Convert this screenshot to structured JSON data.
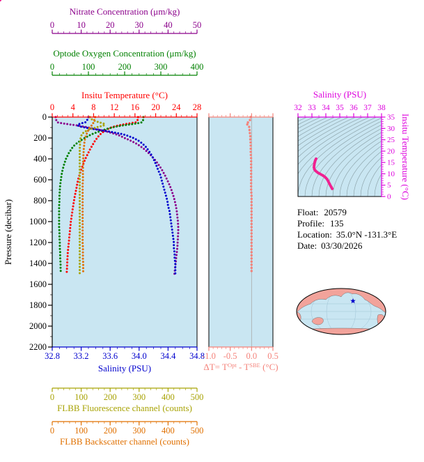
{
  "colors": {
    "background": "#ffffff",
    "plot_bg": "#c9e6f2",
    "axis_black": "#000000",
    "temperature": "#ff0000",
    "oxygen": "#008000",
    "nitrate": "#8b008b",
    "salinity": "#0000cd",
    "fluorescence": "#a8a305",
    "backscatter": "#e07000",
    "delta_t": "#f4827a",
    "ts_axis": "#dd00dd",
    "ts_points": "#f02090",
    "contour": "#8fa6ad",
    "map_land": "#f2a39b",
    "map_ocean": "#c9e6f2",
    "map_graticule": "#9fc3d4",
    "map_marker": "#0000cd"
  },
  "axis_titles": {
    "nitrate": "Nitrate Concentration (μm/kg)",
    "oxygen": "Optode Oxygen Concentration (μm/kg)",
    "temperature": "Insitu Temperature (°C)",
    "pressure": "Pressure (decibar)",
    "salinity": "Salinity (PSU)",
    "fluorescence": "FLBB Fluorescence channel (counts)",
    "backscatter": "FLBB Backscatter channel (counts)",
    "ts_salinity": "Salinity (PSU)",
    "ts_temperature": "Insitu Temperature (°C)",
    "delta_t": {
      "p1": "ΔT= T",
      "sup1": "Opt",
      "p2": " - T",
      "sup2": "SBE",
      "p3": " (°C)"
    }
  },
  "info": {
    "float_label": "Float:",
    "float_value": "20579",
    "profile_label": "Profile:",
    "profile_value": "135",
    "location_label": "Location:",
    "location_value": "35.0°N  -131.3°E",
    "date_label": "Date:",
    "date_value": "03/30/2026"
  },
  "chart_data": [
    {
      "type": "line",
      "name": "hydrographic-profile-plot",
      "ylabel": "Pressure (decibar)",
      "ylim": [
        0,
        2200
      ],
      "yticks": [
        "0",
        "200",
        "400",
        "600",
        "800",
        "1000",
        "1200",
        "1400",
        "1600",
        "1800",
        "2000",
        "2200"
      ],
      "yminor": 100,
      "pressure": [
        0,
        10,
        20,
        30,
        40,
        50,
        60,
        70,
        80,
        90,
        100,
        120,
        140,
        160,
        180,
        200,
        225,
        250,
        275,
        300,
        350,
        400,
        450,
        500,
        550,
        600,
        650,
        700,
        750,
        800,
        850,
        900,
        950,
        1000,
        1050,
        1100,
        1150,
        1200,
        1250,
        1300,
        1350,
        1400,
        1450,
        1500
      ],
      "series": [
        {
          "key": "temperature",
          "label": "Insitu Temperature (°C)",
          "color": "#ff0000",
          "xlim": [
            0,
            28
          ],
          "xticks": [
            "0",
            "4",
            "8",
            "12",
            "16",
            "20",
            "24",
            "28"
          ],
          "xminor": 1,
          "values": [
            16.6,
            16.6,
            16.5,
            16.5,
            16.4,
            16.2,
            15.0,
            13.8,
            12.8,
            12.0,
            11.4,
            10.5,
            9.9,
            9.4,
            9.0,
            8.7,
            8.3,
            8.0,
            7.7,
            7.4,
            6.9,
            6.4,
            6.0,
            5.6,
            5.3,
            5.0,
            4.8,
            4.6,
            4.4,
            4.2,
            4.05,
            3.9,
            3.75,
            3.6,
            3.5,
            3.4,
            3.3,
            3.2,
            3.1,
            3.0,
            2.95,
            2.9,
            2.85,
            2.8
          ]
        },
        {
          "key": "oxygen",
          "label": "Optode Oxygen Concentration (μm/kg)",
          "color": "#008000",
          "xlim": [
            0,
            400
          ],
          "xticks": [
            "0",
            "100",
            "200",
            "300",
            "400"
          ],
          "xminor": 20,
          "values": [
            252,
            252,
            252,
            251,
            250,
            248,
            235,
            215,
            195,
            178,
            165,
            145,
            128,
            112,
            100,
            90,
            78,
            68,
            60,
            54,
            45,
            38,
            33,
            29,
            26,
            24,
            22,
            21,
            20,
            20,
            19,
            19,
            19,
            19,
            19,
            20,
            20,
            21,
            21,
            22,
            22,
            23,
            23,
            24
          ]
        },
        {
          "key": "nitrate",
          "label": "Nitrate Concentration (μm/kg)",
          "color": "#8b008b",
          "xlim": [
            0,
            50
          ],
          "xticks": [
            "0",
            "10",
            "20",
            "30",
            "40",
            "50"
          ],
          "xminor": 2,
          "values": [
            1.2,
            1.2,
            1.3,
            1.4,
            1.5,
            1.8,
            3.5,
            6.0,
            8.5,
            10.5,
            12.5,
            16.0,
            19.0,
            21.5,
            23.5,
            25.0,
            27.0,
            28.8,
            30.2,
            31.5,
            33.5,
            35.2,
            36.6,
            37.8,
            38.8,
            39.7,
            40.5,
            41.2,
            41.8,
            42.3,
            42.7,
            43.0,
            43.2,
            43.4,
            43.5,
            43.5,
            43.4,
            43.3,
            43.2,
            43.0,
            42.8,
            42.6,
            42.4,
            42.2
          ]
        },
        {
          "key": "salinity",
          "label": "Salinity (PSU)",
          "color": "#0000cd",
          "xlim": [
            32.8,
            34.8
          ],
          "xticks": [
            "32.8",
            "33.2",
            "33.6",
            "34.0",
            "34.4",
            "34.8"
          ],
          "xminor": 0.1,
          "values": [
            33.3,
            33.3,
            33.29,
            33.28,
            33.27,
            33.26,
            33.2,
            33.16,
            33.15,
            33.18,
            33.25,
            33.42,
            33.6,
            33.75,
            33.85,
            33.92,
            33.99,
            34.04,
            34.08,
            34.11,
            34.16,
            34.2,
            34.23,
            34.26,
            34.29,
            34.31,
            34.33,
            34.35,
            34.37,
            34.39,
            34.4,
            34.42,
            34.43,
            34.44,
            34.45,
            34.46,
            34.47,
            34.48,
            34.48,
            34.49,
            34.49,
            34.5,
            34.5,
            34.5
          ]
        },
        {
          "key": "fluorescence",
          "label": "FLBB Fluorescence channel (counts)",
          "color": "#a8a305",
          "xlim": [
            0,
            500
          ],
          "xticks": [
            "0",
            "100",
            "200",
            "300",
            "400",
            "500"
          ],
          "xminor": 20,
          "values": [
            130,
            132,
            136,
            142,
            150,
            162,
            176,
            182,
            178,
            165,
            150,
            128,
            112,
            104,
            100,
            98,
            97,
            96,
            96,
            95,
            95,
            95,
            95,
            95,
            95,
            95,
            95,
            95,
            95,
            95,
            95,
            95,
            95,
            95,
            95,
            95,
            95,
            95,
            95,
            95,
            95,
            95,
            95,
            95
          ]
        },
        {
          "key": "backscatter",
          "label": "FLBB Backscatter channel (counts)",
          "color": "#e07000",
          "xlim": [
            0,
            500
          ],
          "xticks": [
            "0",
            "100",
            "200",
            "300",
            "400",
            "500"
          ],
          "xminor": 20,
          "values": [
            148,
            147,
            146,
            145,
            144,
            143,
            141,
            139,
            136,
            133,
            130,
            126,
            122,
            119,
            116,
            114,
            112,
            111,
            110,
            109,
            108,
            107,
            107,
            106,
            106,
            106,
            105,
            105,
            105,
            105,
            105,
            105,
            105,
            105,
            105,
            105,
            105,
            105,
            106,
            106,
            106,
            107,
            107,
            107
          ]
        }
      ]
    },
    {
      "type": "line",
      "name": "temperature-difference-plot",
      "xlabel": "ΔT= T^Opt - T^SBE (°C)",
      "xlim": [
        -1.0,
        0.5
      ],
      "xticks": [
        "-1.0",
        "-0.5",
        "0.0",
        "0.5"
      ],
      "xminor": 0.1,
      "ylim": [
        0,
        2200
      ],
      "color": "#f4827a",
      "values": [
        -0.02,
        -0.02,
        -0.03,
        -0.04,
        -0.06,
        -0.08,
        -0.12,
        -0.1,
        -0.08,
        -0.06,
        -0.05,
        -0.05,
        -0.04,
        -0.04,
        -0.03,
        -0.03,
        -0.03,
        -0.02,
        -0.02,
        -0.02,
        -0.02,
        -0.01,
        -0.01,
        -0.01,
        -0.01,
        -0.01,
        -0.01,
        -0.01,
        0.0,
        0.0,
        0.0,
        0.0,
        0.0,
        0.0,
        0.0,
        0.0,
        0.0,
        0.0,
        0.0,
        0.0,
        0.0,
        0.0,
        0.0,
        0.0
      ]
    },
    {
      "type": "scatter",
      "name": "ts-diagram",
      "xlabel": "Salinity (PSU)",
      "xlim": [
        32,
        38
      ],
      "xticks": [
        "32",
        "33",
        "34",
        "35",
        "36",
        "37",
        "38"
      ],
      "xminor": 0.5,
      "ylabel": "Insitu Temperature (°C)",
      "ylim": [
        0,
        35
      ],
      "yticks": [
        "0",
        "5",
        "10",
        "15",
        "20",
        "25",
        "30",
        "35"
      ],
      "yminor": 1,
      "color": "#f02090",
      "axis_color": "#dd00dd",
      "points": "derived from salinity and temperature profile series"
    },
    {
      "type": "map",
      "name": "world-map",
      "projection": "mollweide",
      "marker": {
        "name": "float-location-star",
        "lat": 35.0,
        "lon": -131.3
      }
    }
  ]
}
